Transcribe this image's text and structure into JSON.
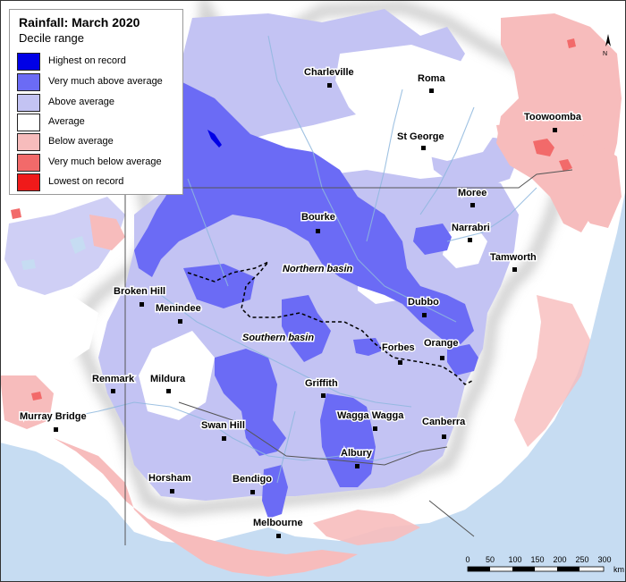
{
  "legend": {
    "title": "Rainfall: March 2020",
    "subtitle": "Decile range",
    "items": [
      {
        "label": "Highest on record",
        "color": "#0000e6"
      },
      {
        "label": "Very much above average",
        "color": "#6b6bf5"
      },
      {
        "label": "Above average",
        "color": "#c3c3f3"
      },
      {
        "label": "Average",
        "color": "#ffffff"
      },
      {
        "label": "Below average",
        "color": "#f7bcbc"
      },
      {
        "label": "Very much below average",
        "color": "#f26a6a"
      },
      {
        "label": "Lowest on record",
        "color": "#f01a1a"
      }
    ]
  },
  "towns": [
    {
      "name": "Charleville"
    },
    {
      "name": "Roma"
    },
    {
      "name": "Toowoomba"
    },
    {
      "name": "St George"
    },
    {
      "name": "Moree"
    },
    {
      "name": "Bourke"
    },
    {
      "name": "Narrabri"
    },
    {
      "name": "Tamworth"
    },
    {
      "name": "Broken Hill"
    },
    {
      "name": "Menindee"
    },
    {
      "name": "Dubbo"
    },
    {
      "name": "Forbes"
    },
    {
      "name": "Orange"
    },
    {
      "name": "Renmark"
    },
    {
      "name": "Mildura"
    },
    {
      "name": "Griffith"
    },
    {
      "name": "Murray Bridge"
    },
    {
      "name": "Swan Hill"
    },
    {
      "name": "Wagga Wagga"
    },
    {
      "name": "Canberra"
    },
    {
      "name": "Albury"
    },
    {
      "name": "Horsham"
    },
    {
      "name": "Bendigo"
    },
    {
      "name": "Melbourne"
    }
  ],
  "basins": {
    "northern": "Northern basin",
    "southern": "Southern basin"
  },
  "scale": {
    "ticks": [
      "0",
      "50",
      "100",
      "150",
      "200",
      "250",
      "300"
    ],
    "unit": "km"
  },
  "north_label": "N",
  "colors": {
    "sea": "#c6dcf2",
    "land": "#ffffff",
    "above": "#c3c3f3",
    "very_above": "#6b6bf5",
    "highest": "#0000e6",
    "below": "#f7bcbc",
    "very_below": "#f26a6a",
    "lowest": "#f01a1a",
    "river": "#8fb8de"
  }
}
